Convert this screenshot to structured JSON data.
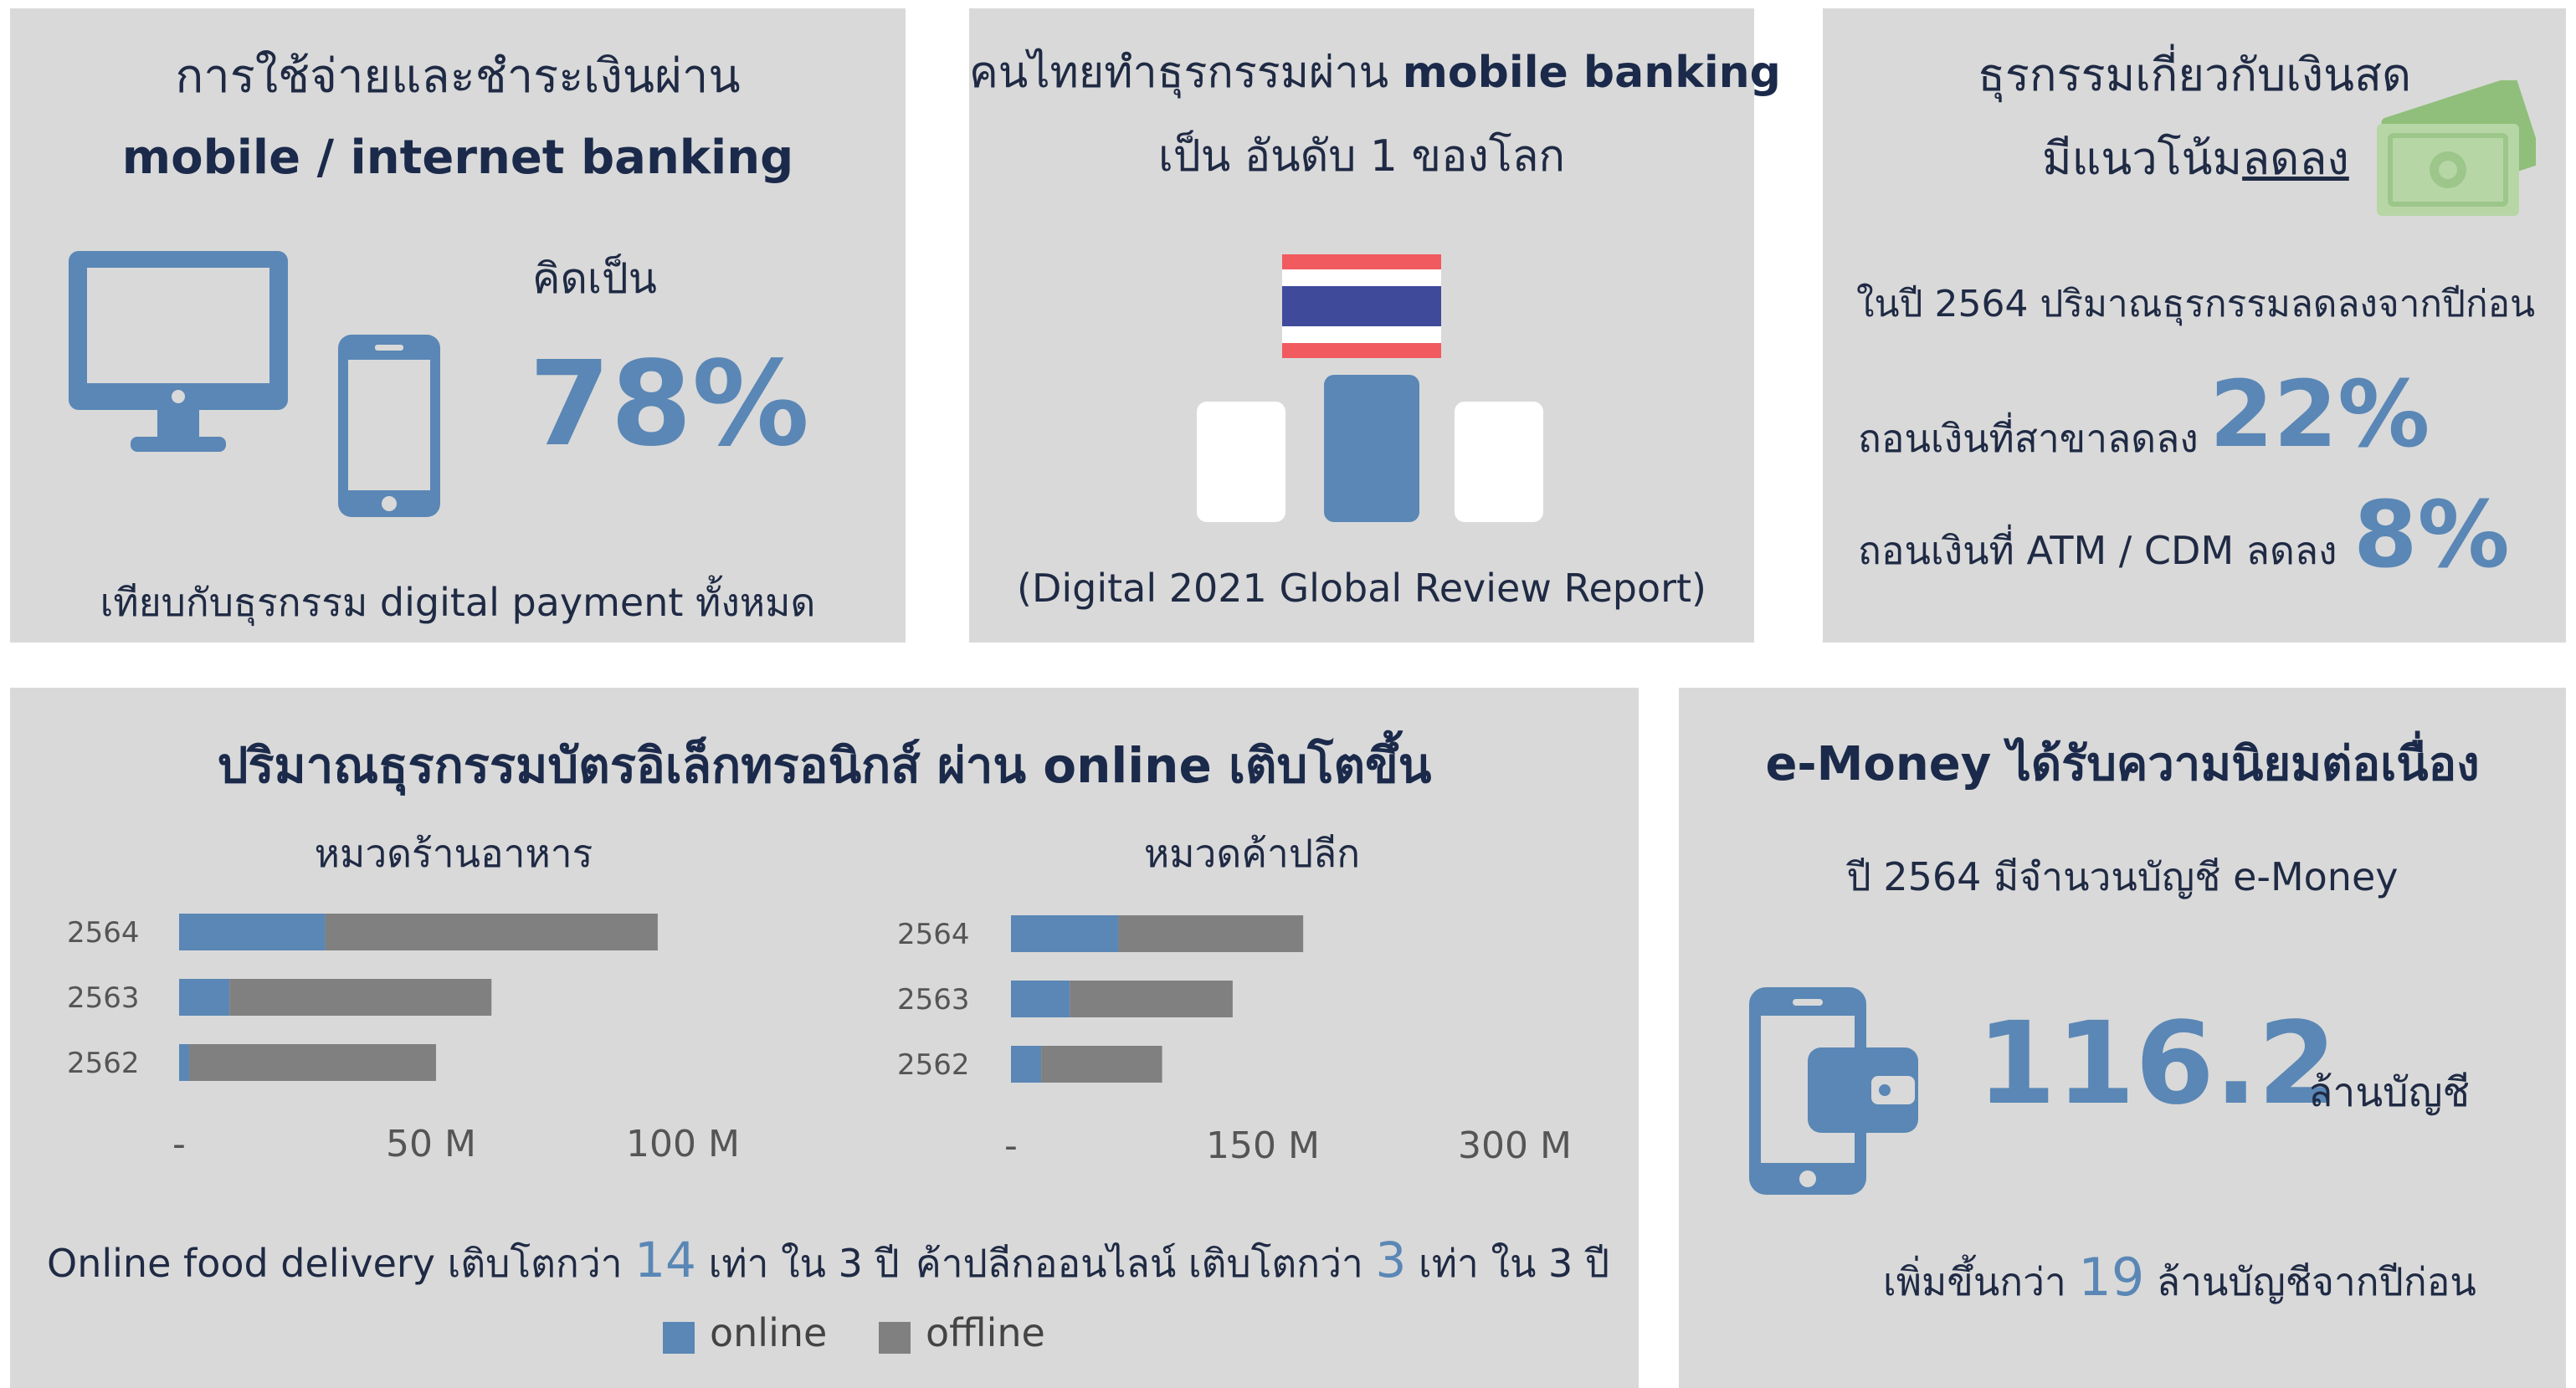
{
  "panel1": {
    "title_line1": "การใช้จ่ายและชำระเงินผ่าน",
    "title_line2": "mobile / internet banking",
    "label": "คิดเป็น",
    "value": "78%",
    "footer": "เทียบกับธุรกรรม digital payment ทั้งหมด",
    "icons": [
      "desktop-monitor-icon",
      "smartphone-icon"
    ]
  },
  "panel2": {
    "title_prefix": "คนไทยทำธุรกรรมผ่าน ",
    "title_bold": "mobile banking",
    "subtitle": "เป็น อันดับ 1 ของโลก",
    "source": "(Digital 2021 Global Review Report)",
    "icons": [
      "thailand-flag-icon",
      "podium-icon"
    ]
  },
  "panel3": {
    "title_line1": "ธุรกรรมเกี่ยวกับเงินสด",
    "title_line2_prefix": "มีแนวโน้ม",
    "title_line2_underlined": "ลดลง",
    "note": "ในปี 2564 ปริมาณธุรกรรมลดลงจากปีก่อน",
    "row1_label": "ถอนเงินที่สาขาลดลง",
    "row1_value": "22%",
    "row2_label": "ถอนเงินที่ ATM / CDM ลดลง",
    "row2_value": "8%",
    "icons": [
      "banknote-icon"
    ]
  },
  "panel4": {
    "title": "ปริมาณธุรกรรมบัตรอิเล็กทรอนิกส์ ผ่าน online เติบโตขึ้น",
    "food_caption_prefix": "Online food delivery เติบโตกว่า ",
    "food_caption_number": "14",
    "food_caption_suffix": " เท่า ใน 3 ปี",
    "retail_caption_prefix": "ค้าปลีกออนไลน์ เติบโตกว่า ",
    "retail_caption_number": "3",
    "retail_caption_suffix": " เท่า ใน 3 ปี",
    "legend_online": "online",
    "legend_offline": "offline"
  },
  "panel5": {
    "title": "e-Money ได้รับความนิยมต่อเนื่อง",
    "subtitle": "ปี 2564  มีจำนวนบัญชี e-Money",
    "value": "116.2",
    "unit": "ล้านบัญชี",
    "footer_prefix": "เพิ่มขึ้นกว่า ",
    "footer_number": "19",
    "footer_suffix": " ล้านบัญชีจากปีก่อน",
    "icons": [
      "phone-wallet-icon"
    ]
  },
  "colors": {
    "panel_bg": "#d9d9d9",
    "accent_blue": "#5a87b5",
    "offline_gray": "#808080",
    "navy": "#1b2a4a"
  },
  "chart_data": [
    {
      "type": "bar",
      "orientation": "horizontal",
      "stacked": true,
      "title": "หมวดร้านอาหาร",
      "categories": [
        "2564",
        "2563",
        "2562"
      ],
      "series": [
        {
          "name": "online",
          "values": [
            29,
            10,
            2
          ],
          "color": "#5a87b5"
        },
        {
          "name": "offline",
          "values": [
            66,
            52,
            49
          ],
          "color": "#808080"
        }
      ],
      "xlim": [
        0,
        100
      ],
      "xticks": [
        {
          "value": 0,
          "label": "-"
        },
        {
          "value": 50,
          "label": "50 M"
        },
        {
          "value": 100,
          "label": "100 M"
        }
      ],
      "legend": "bottom",
      "grid": false
    },
    {
      "type": "bar",
      "orientation": "horizontal",
      "stacked": true,
      "title": "หมวดค้าปลีก",
      "categories": [
        "2564",
        "2563",
        "2562"
      ],
      "series": [
        {
          "name": "online",
          "values": [
            64,
            35,
            18
          ],
          "color": "#5a87b5"
        },
        {
          "name": "offline",
          "values": [
            110,
            97,
            72
          ],
          "color": "#808080"
        }
      ],
      "xlim": [
        0,
        300
      ],
      "xticks": [
        {
          "value": 0,
          "label": "-"
        },
        {
          "value": 150,
          "label": "150 M"
        },
        {
          "value": 300,
          "label": "300 M"
        }
      ],
      "legend": "bottom",
      "grid": false
    }
  ]
}
